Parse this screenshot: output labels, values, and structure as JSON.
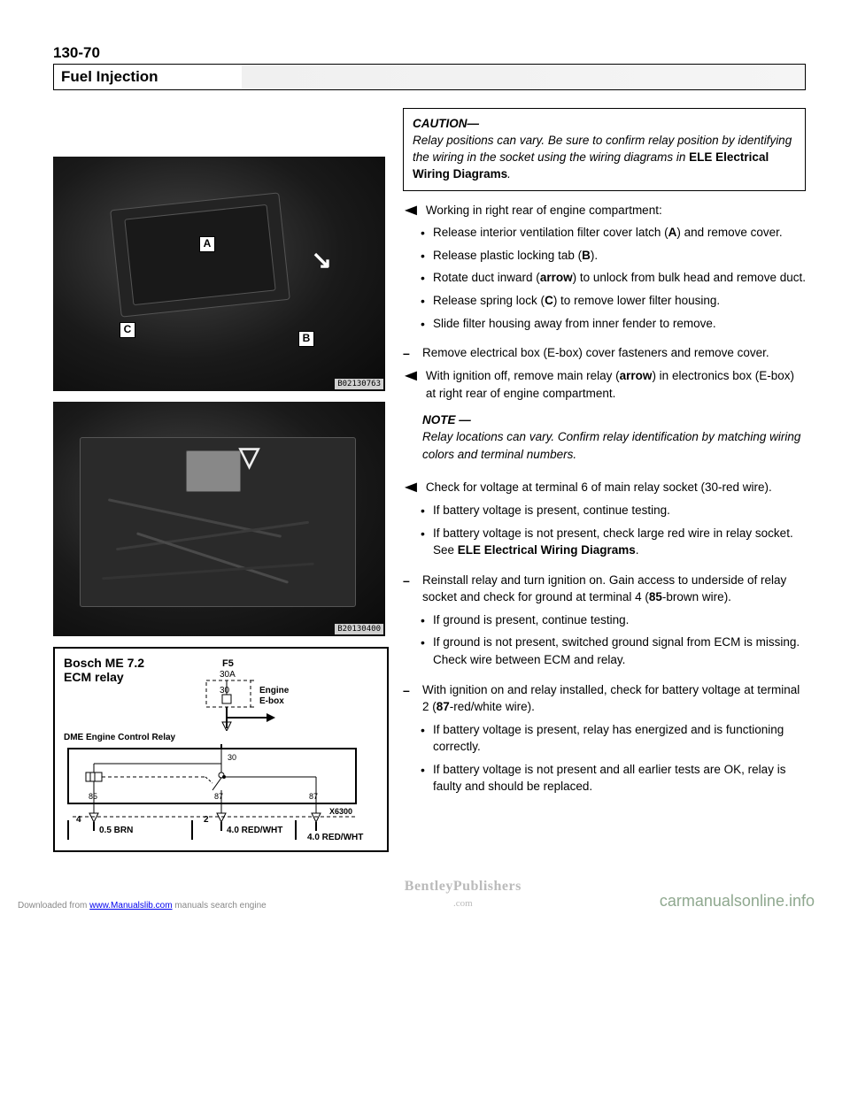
{
  "page_number": "130-70",
  "section_title": "Fuel Injection",
  "caution": {
    "heading": "CAUTION—",
    "body_1": "Relay positions can vary. Be sure to confirm relay position by identifying the wiring in the socket using the wiring diagrams in ",
    "body_bold": "ELE Electrical Wiring Diagrams",
    "body_2": "."
  },
  "photo1": {
    "id": "B02130763",
    "labels": {
      "A": "A",
      "B": "B",
      "C": "C"
    }
  },
  "photo2": {
    "id": "B20130400"
  },
  "steps": [
    {
      "type": "arrow",
      "text": "Working in right rear of engine compartment:",
      "bullets": [
        "Release interior ventilation filter cover latch (<b>A</b>) and remove cover.",
        "Release plastic locking tab (<b>B</b>).",
        "Rotate duct inward (<b>arrow</b>) to unlock from bulk head and remove duct.",
        "Release spring lock (<b>C</b>) to remove lower filter housing.",
        "Slide filter housing away from inner fender to remove."
      ]
    },
    {
      "type": "dash",
      "text": "Remove electrical box (E-box) cover fasteners and remove cover.",
      "bullets": []
    },
    {
      "type": "arrow",
      "text": "With ignition off, remove main relay (<b>arrow</b>) in electronics box (E-box) at right rear of engine compartment.",
      "bullets": []
    }
  ],
  "note": {
    "heading": "NOTE —",
    "body": "Relay locations can vary. Confirm relay identification by matching wiring colors and terminal numbers."
  },
  "steps2": [
    {
      "type": "arrow",
      "text": "Check for voltage at terminal 6 of main relay socket (30-red wire).",
      "bullets": [
        "If battery voltage is present, continue testing.",
        "If battery voltage is not present, check large red wire in relay socket. See <b>ELE Electrical Wiring Diagrams</b>."
      ]
    },
    {
      "type": "dash",
      "text": "Reinstall relay and turn ignition on. Gain access to underside of relay socket and check for ground at terminal 4 (<b>85</b>-brown wire).",
      "bullets": [
        "If ground is present, continue testing.",
        "If ground is not present, switched ground signal from ECM is missing. Check wire between ECM and relay."
      ]
    },
    {
      "type": "dash",
      "text": "With ignition on and relay installed, check for battery voltage at terminal 2 (<b>87</b>-red/white wire).",
      "bullets": [
        "If battery voltage is present, relay has energized and is functioning correctly.",
        "If battery voltage is not present and all earlier tests are OK, relay is faulty and should be replaced."
      ]
    }
  ],
  "diagram": {
    "title1": "Bosch ME 7.2",
    "title2": "ECM relay",
    "fuse": "F5",
    "fuse_amp": "30A",
    "term30": "30",
    "engine_box": "Engine\nE-box",
    "dme_label": "DME Engine Control Relay",
    "t85": "85",
    "t87a": "87",
    "t87b": "87",
    "t30": "30",
    "pin4": "4",
    "pin2": "2",
    "wire1": "0.5 BRN",
    "wire2": "4.0 RED/WHT",
    "wire3": "4.0 RED/WHT",
    "conn": "X6300"
  },
  "footer": {
    "left_pre": "Downloaded from ",
    "left_link": "www.Manualslib.com",
    "left_post": " manuals search engine",
    "center1": "BentleyPublishers",
    "center2": ".com",
    "right": "carmanualsonline.info"
  },
  "colors": {
    "text": "#000000",
    "link": "#2255cc",
    "footer_grey": "#888888",
    "footer_green": "#8fa88f",
    "photo_bg": "#1a1a1a"
  }
}
